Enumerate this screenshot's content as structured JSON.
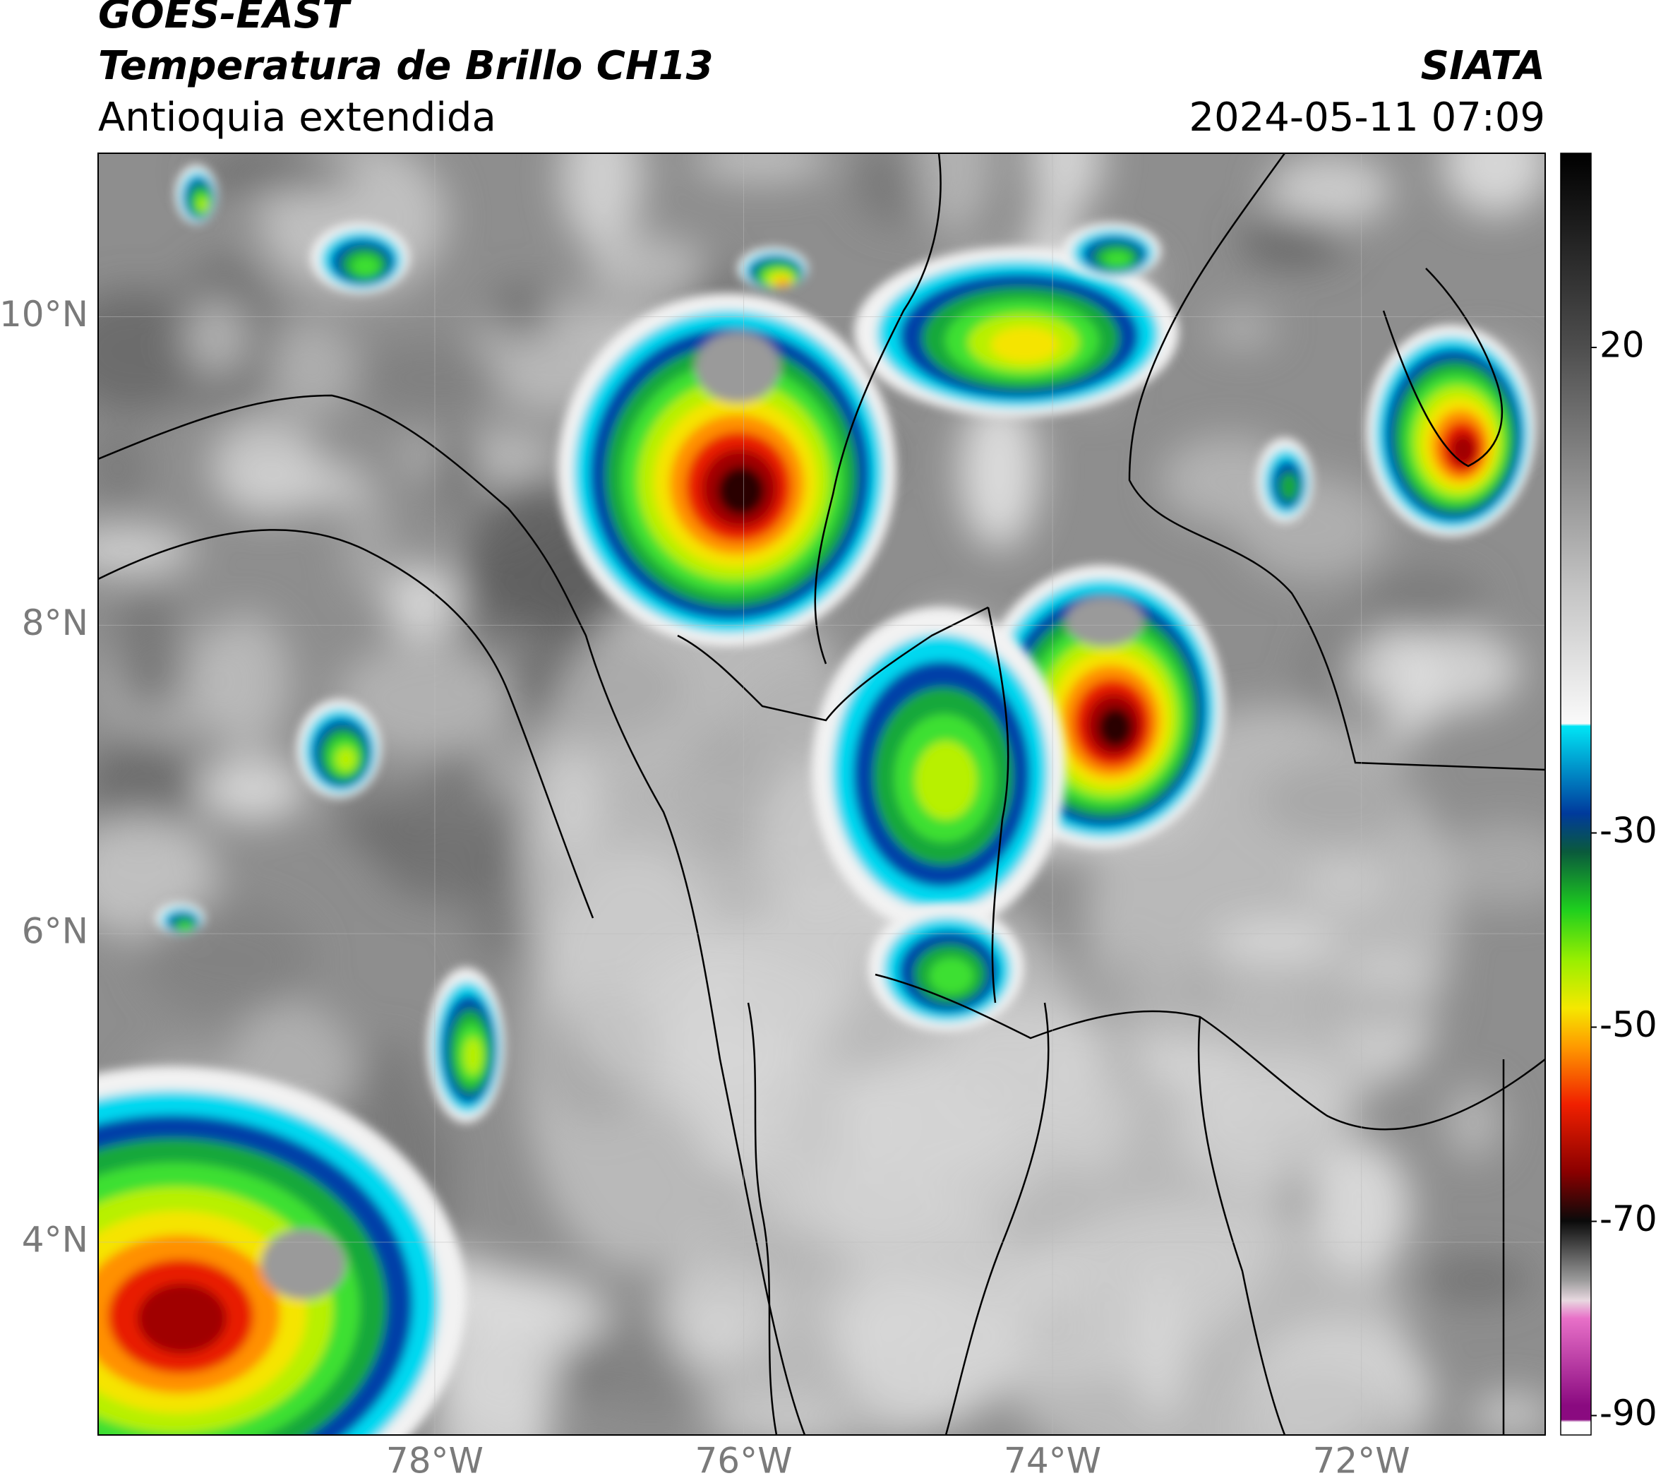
{
  "header": {
    "title": "GOES-EAST",
    "subtitle": "Temperatura de Brillo CH13",
    "region": "Antioquia extendida",
    "source": "SIATA",
    "datetime": "2024-05-11 07:09"
  },
  "map": {
    "xlim": [
      -80.18,
      -70.81
    ],
    "ylim": [
      2.75,
      11.06
    ],
    "xticks": [
      {
        "value": -78,
        "label": "78°W"
      },
      {
        "value": -76,
        "label": "76°W"
      },
      {
        "value": -74,
        "label": "74°W"
      },
      {
        "value": -72,
        "label": "72°W"
      }
    ],
    "yticks": [
      {
        "value": 10,
        "label": "10°N"
      },
      {
        "value": 8,
        "label": "8°N"
      },
      {
        "value": 6,
        "label": "6°N"
      },
      {
        "value": 4,
        "label": "4°N"
      }
    ],
    "grid": true
  },
  "colorbar": {
    "lim": [
      -92,
      40
    ],
    "ticks": [
      20,
      -30,
      -50,
      -70,
      -90
    ]
  }
}
